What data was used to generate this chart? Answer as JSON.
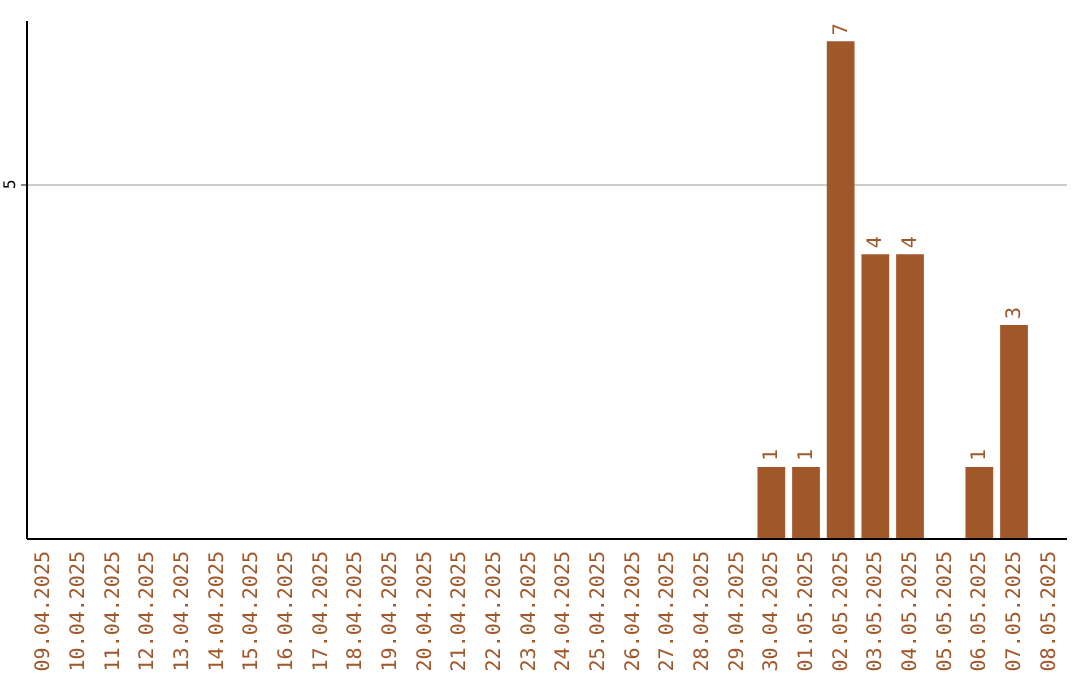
{
  "chart_data": {
    "type": "bar",
    "categories": [
      "09.04.2025",
      "10.04.2025",
      "11.04.2025",
      "12.04.2025",
      "13.04.2025",
      "14.04.2025",
      "15.04.2025",
      "16.04.2025",
      "17.04.2025",
      "18.04.2025",
      "19.04.2025",
      "20.04.2025",
      "21.04.2025",
      "22.04.2025",
      "23.04.2025",
      "24.04.2025",
      "25.04.2025",
      "26.04.2025",
      "27.04.2025",
      "28.04.2025",
      "29.04.2025",
      "30.04.2025",
      "01.05.2025",
      "02.05.2025",
      "03.05.2025",
      "04.05.2025",
      "05.05.2025",
      "06.05.2025",
      "07.05.2025",
      "08.05.2025"
    ],
    "values": [
      null,
      null,
      null,
      null,
      null,
      null,
      null,
      null,
      null,
      null,
      null,
      null,
      null,
      null,
      null,
      null,
      null,
      null,
      null,
      null,
      null,
      1,
      1,
      7,
      4,
      4,
      null,
      1,
      3,
      null
    ],
    "data_labels": true,
    "color": "#a0572a",
    "ylim": [
      0,
      7.3
    ],
    "yticks": [
      5
    ],
    "grid": "y"
  }
}
